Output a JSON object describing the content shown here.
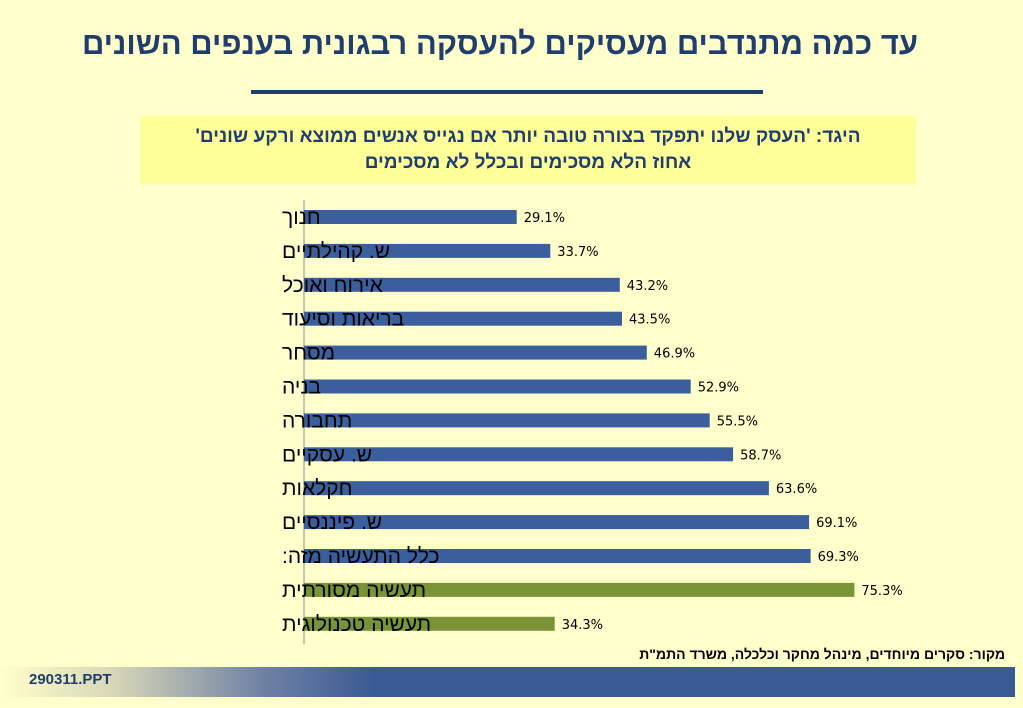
{
  "title": "עד כמה מתנדבים מעסיקים להעסקה רבגונית בענפים השונים",
  "statement": {
    "line1": "היגד: 'העסק שלנו יתפקד בצורה טובה יותר אם נגייס אנשים ממוצא ורקע שונים'",
    "line2": "אחוז הלא מסכימים ובכלל לא מסכימים"
  },
  "source": "מקור: סקרים מיוחדים, מינהל מחקר וכלכלה, משרד התמ\"ת",
  "footer": {
    "file": "290311.PPT"
  },
  "colors": {
    "title": "#1f3e6e",
    "bar_blue": "#3a5f9c",
    "bar_green": "#789436",
    "footer": "#3a5a94"
  },
  "chart_data": {
    "type": "bar",
    "orientation": "horizontal",
    "categories": [
      "חנוך",
      "ש. קהילתיים",
      "אירוח ואוכל",
      "בריאות וסיעוד",
      "מסחר",
      "בניה",
      "תחבורה",
      "ש. עסקיים",
      "חקלאות",
      "ש. פיננסיים",
      "כלל התעשיה מזה:",
      "תעשיה מסורתית",
      "תעשיה טכנולוגית"
    ],
    "values": [
      29.1,
      33.7,
      43.2,
      43.5,
      46.9,
      52.9,
      55.5,
      58.7,
      63.6,
      69.1,
      69.3,
      75.3,
      34.3
    ],
    "value_labels": [
      "29.1%",
      "33.7%",
      "43.2%",
      "43.5%",
      "46.9%",
      "52.9%",
      "55.5%",
      "58.7%",
      "63.6%",
      "69.1%",
      "69.3%",
      "75.3%",
      "34.3%"
    ],
    "bar_colors": [
      "blue",
      "blue",
      "blue",
      "blue",
      "blue",
      "blue",
      "blue",
      "blue",
      "blue",
      "blue",
      "blue",
      "green",
      "green"
    ],
    "xlim": [
      0,
      75.3
    ],
    "grid": false,
    "legend": "none"
  }
}
